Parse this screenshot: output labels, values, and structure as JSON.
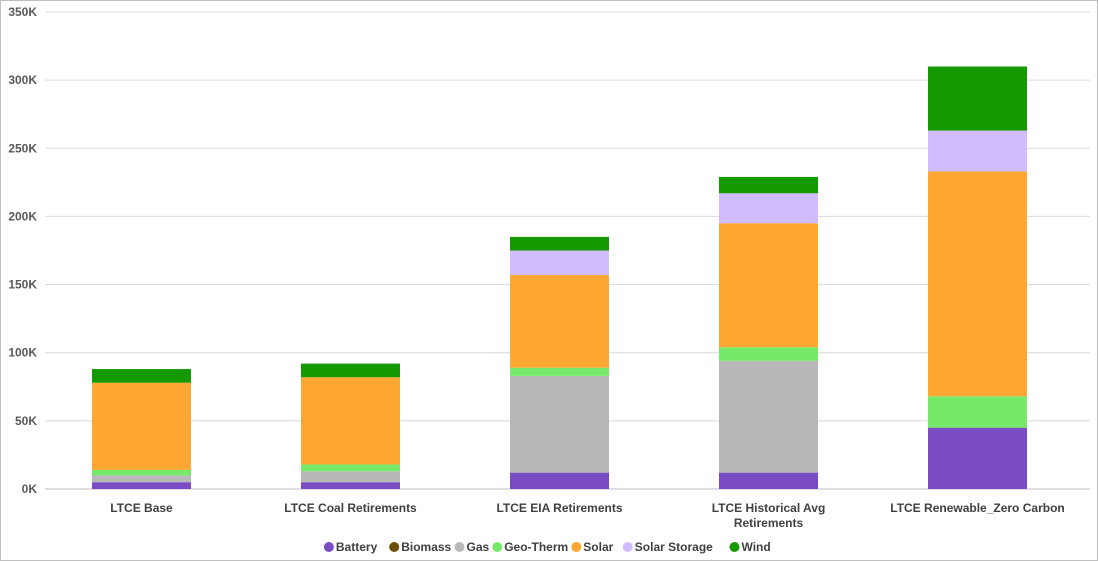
{
  "chart_data": {
    "type": "bar",
    "stacked": true,
    "title": "",
    "xlabel": "",
    "ylabel": "",
    "ylim": [
      0,
      350000
    ],
    "yticks": [
      0,
      50000,
      100000,
      150000,
      200000,
      250000,
      300000,
      350000
    ],
    "ytick_labels": [
      "0K",
      "50K",
      "100K",
      "150K",
      "200K",
      "250K",
      "300K",
      "350K"
    ],
    "grid": true,
    "legend_position": "bottom",
    "categories": [
      [
        "LTCE Base"
      ],
      [
        "LTCE Coal Retirements"
      ],
      [
        "LTCE EIA Retirements"
      ],
      [
        "LTCE Historical Avg",
        "Retirements"
      ],
      [
        "LTCE Renewable_Zero Carbon"
      ]
    ],
    "series": [
      {
        "name": "Battery",
        "color": "#7a4cc3",
        "values": [
          5000,
          5000,
          12000,
          12000,
          45000
        ]
      },
      {
        "name": "Biomass",
        "color": "#6b4e00",
        "values": [
          0,
          0,
          0,
          0,
          0
        ]
      },
      {
        "name": "Gas",
        "color": "#b8b8b8",
        "values": [
          5000,
          8000,
          71000,
          82000,
          0
        ]
      },
      {
        "name": "Geo-Therm",
        "color": "#76e96a",
        "values": [
          4000,
          5000,
          6000,
          10000,
          23000
        ]
      },
      {
        "name": "Solar",
        "color": "#ffa733",
        "values": [
          64000,
          64000,
          68000,
          91000,
          165000
        ]
      },
      {
        "name": "Solar Storage",
        "color": "#d1bdfd",
        "values": [
          0,
          0,
          18000,
          22000,
          30000
        ]
      },
      {
        "name": "Wind",
        "color": "#149a00",
        "values": [
          10000,
          10000,
          10000,
          12000,
          47000
        ]
      }
    ]
  }
}
